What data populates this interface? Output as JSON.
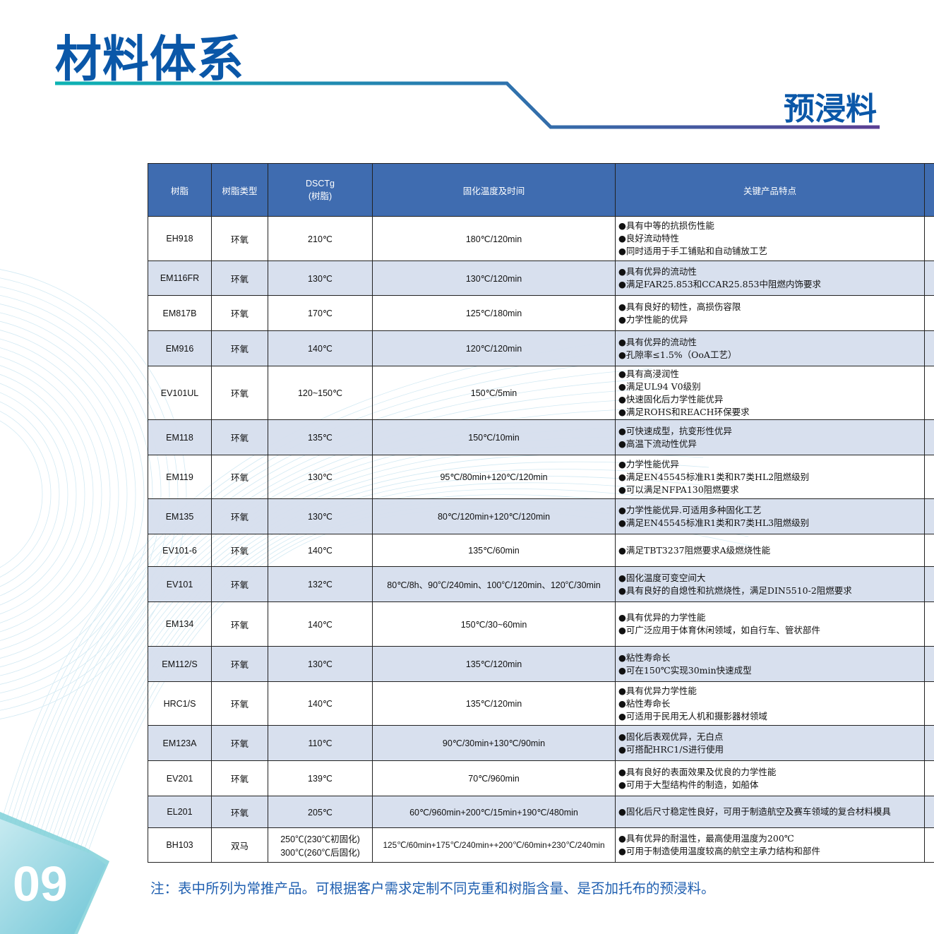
{
  "header": {
    "title": "材料体系",
    "subtitle": "预浸料"
  },
  "table": {
    "columns": [
      "树脂",
      "树脂类型",
      "DSCTg\n(树脂)",
      "固化温度及时间",
      "关键产品特点"
    ],
    "rows": [
      {
        "resin": "EH918",
        "type": "环氧",
        "tg": "210℃",
        "cure": "180℃/120min",
        "features": [
          "具有中等的抗损伤性能",
          "良好流动特性",
          "同时适用于手工铺贴和自动铺放工艺"
        ]
      },
      {
        "resin": "EM116FR",
        "type": "环氧",
        "tg": "130℃",
        "cure": "130℃/120min",
        "features": [
          "具有优异的流动性",
          "满足FAR25.853和CCAR25.853中阻燃内饰要求"
        ]
      },
      {
        "resin": "EM817B",
        "type": "环氧",
        "tg": "170℃",
        "cure": "125℃/180min",
        "features": [
          "具有良好的韧性，高损伤容限",
          "力学性能的优异"
        ]
      },
      {
        "resin": "EM916",
        "type": "环氧",
        "tg": "140℃",
        "cure": "120℃/120min",
        "features": [
          "具有优异的流动性",
          "孔隙率≤1.5%（OoA工艺）"
        ]
      },
      {
        "resin": "EV101UL",
        "type": "环氧",
        "tg": "120~150℃",
        "cure": "150℃/5min",
        "features": [
          "具有高浸润性",
          "满足UL94 V0级别",
          "快速固化后力学性能优异",
          "满足ROHS和REACH环保要求"
        ]
      },
      {
        "resin": "EM118",
        "type": "环氧",
        "tg": "135℃",
        "cure": "150℃/10min",
        "features": [
          "可快速成型，抗变形性优异",
          "高温下流动性优异"
        ]
      },
      {
        "resin": "EM119",
        "type": "环氧",
        "tg": "130℃",
        "cure": "95℃/80min+120℃/120min",
        "features": [
          "力学性能优异",
          "满足EN45545标准R1类和R7类HL2阻燃级别",
          "可以满足NFPA130阻燃要求"
        ]
      },
      {
        "resin": "EM135",
        "type": "环氧",
        "tg": "130℃",
        "cure": "80℃/120min+120℃/120min",
        "features": [
          "力学性能优异.可适用多种固化工艺",
          "满足EN45545标准R1类和R7类HL3阻燃级别"
        ]
      },
      {
        "resin": "EV101-6",
        "type": "环氧",
        "tg": "140℃",
        "cure": "135℃/60min",
        "features": [
          "满足TBT3237阻燃要求A级燃烧性能"
        ]
      },
      {
        "resin": "EV101",
        "type": "环氧",
        "tg": "132℃",
        "cure": "80℃/8h、90℃/240min、100℃/120min、120℃/30min",
        "features": [
          "固化温度可变空间大",
          "具有良好的自熄性和抗燃烧性，满足DIN5510-2阻燃要求"
        ]
      },
      {
        "resin": "EM134",
        "type": "环氧",
        "tg": "140℃",
        "cure": "150℃/30~60min",
        "features": [
          "具有优异的力学性能",
          "可广泛应用于体育休闲领域，如自行车、管状部件"
        ]
      },
      {
        "resin": "EM112/S",
        "type": "环氧",
        "tg": "130℃",
        "cure": "135℃/120min",
        "features": [
          "粘性寿命长",
          "可在150℃实现30min快速成型"
        ]
      },
      {
        "resin": "HRC1/S",
        "type": "环氧",
        "tg": "140℃",
        "cure": "135℃/120min",
        "features": [
          "具有优异力学性能",
          "粘性寿命长",
          "可适用于民用无人机和摄影器材领域"
        ]
      },
      {
        "resin": "EM123A",
        "type": "环氧",
        "tg": "110℃",
        "cure": "90℃/30min+130℃/90min",
        "features": [
          "固化后表观优异，无白点",
          "可搭配HRC1/S进行使用"
        ]
      },
      {
        "resin": "EV201",
        "type": "环氧",
        "tg": "139℃",
        "cure": "70℃/960min",
        "features": [
          "具有良好的表面效果及优良的力学性能",
          "可用于大型结构件的制造，如船体"
        ]
      },
      {
        "resin": "EL201",
        "type": "环氧",
        "tg": "205℃",
        "cure": "60℃/960min+200℃/15min+190℃/480min",
        "features": [
          "固化后尺寸稳定性良好，可用于制造航空及赛车领域的复合材料模具"
        ]
      },
      {
        "resin": "BH103",
        "type": "双马",
        "tg": "250℃(230℃初固化)\n300℃(260℃后固化)",
        "cure": "125℃/60min+175℃/240min++200℃/60min+230℃/240min",
        "features": [
          "具有优异的耐温性，最高使用温度为200℃",
          "可用于制造使用温度较高的航空主承力结构和部件"
        ]
      }
    ]
  },
  "note": "注：表中所列为常推产品。可根据客户需求定制不同克重和树脂含量、是否加托布的预浸料。",
  "page_number": "09",
  "colors": {
    "brand_blue": "#0a57a8",
    "header_fill": "#3f6cb0",
    "alt_row": "#d6deed",
    "teal": "#0db3b3",
    "purple": "#5a3f93"
  },
  "bullet": "●"
}
